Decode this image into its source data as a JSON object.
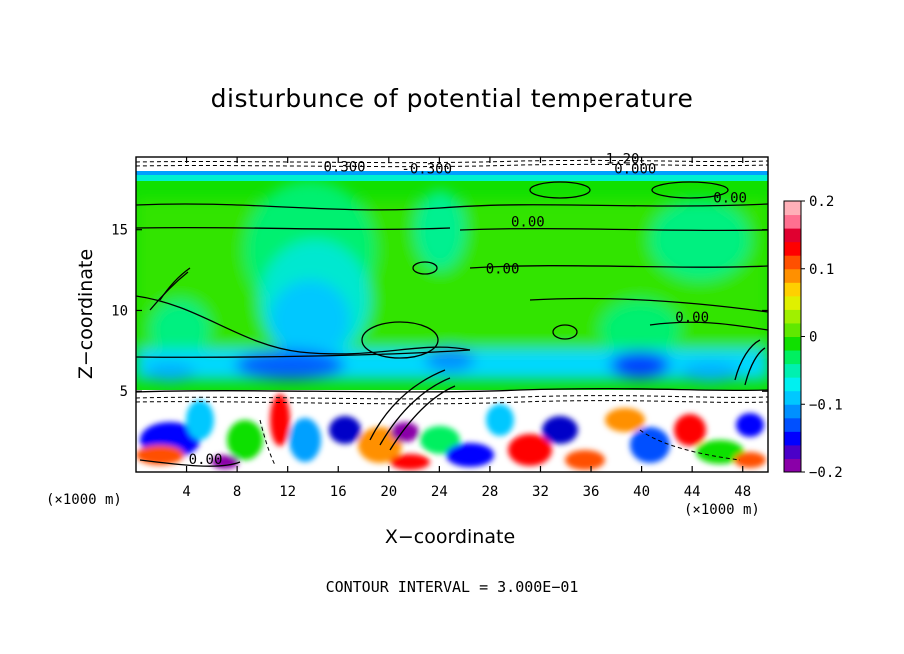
{
  "chart_data": {
    "type": "heatmap",
    "title": "disturbunce of potential temperature",
    "xlabel": "X−coordinate",
    "ylabel": "Z−coordinate",
    "x_unit_label": "(×1000 m)",
    "z_unit_label": "(×1000 m)",
    "x_ticks": [
      4,
      8,
      12,
      16,
      20,
      24,
      28,
      32,
      36,
      40,
      44,
      48
    ],
    "z_ticks": [
      5,
      10,
      15
    ],
    "xlim": [
      0,
      50
    ],
    "zlim": [
      0,
      19.5
    ],
    "colorbar": {
      "range": [
        -0.2,
        0.2
      ],
      "ticks": [
        "0.2",
        "0.1",
        "0",
        "−0.1",
        "−0.2"
      ],
      "tick_values": [
        0.2,
        0.1,
        0,
        -0.1,
        -0.2
      ],
      "colors": [
        "#8a00a8",
        "#4a00c8",
        "#0000ff",
        "#0050ff",
        "#0090ff",
        "#00c8ff",
        "#00f0f0",
        "#00f0b0",
        "#00f060",
        "#10e000",
        "#60e800",
        "#a0f000",
        "#e0f000",
        "#ffd000",
        "#ff9000",
        "#ff5000",
        "#ff0000",
        "#e00030",
        "#ff7090",
        "#ffb0b8"
      ]
    },
    "contour_interval_text": "CONTOUR INTERVAL = 3.000E−01",
    "contour_labels": [
      {
        "text": "0.00",
        "x": 47.0,
        "z": 17.0
      },
      {
        "text": "0.00",
        "x": 31.0,
        "z": 15.5
      },
      {
        "text": "0.00",
        "x": 29.0,
        "z": 12.6
      },
      {
        "text": "0.00",
        "x": 44.0,
        "z": 9.6
      },
      {
        "text": "0.00",
        "x": 5.5,
        "z": 0.8
      },
      {
        "text": "-0.300",
        "x": 23.0,
        "z": 18.8
      },
      {
        "text": "0.000",
        "x": 39.5,
        "z": 18.8
      },
      {
        "text": "1.20",
        "x": 38.5,
        "z": 19.4
      },
      {
        "text": "0.300",
        "x": 16.5,
        "z": 18.9
      }
    ]
  }
}
